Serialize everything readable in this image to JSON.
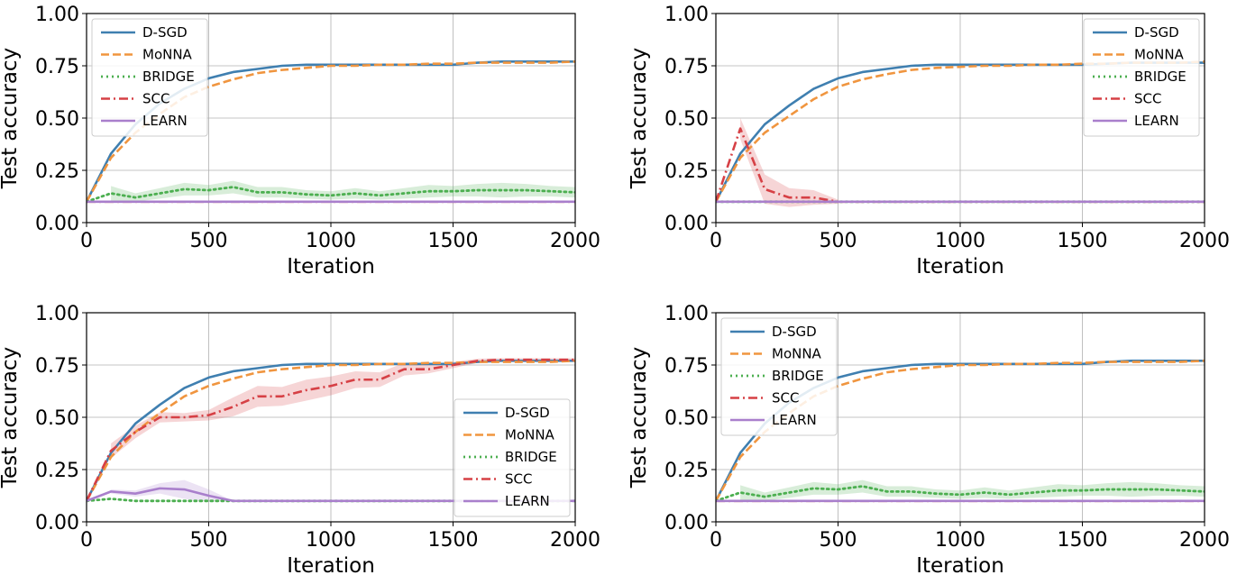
{
  "chart_data": [
    {
      "type": "line",
      "panel": "top-left",
      "xlabel": "Iteration",
      "ylabel": "Test accuracy",
      "xlim": [
        0,
        2000
      ],
      "ylim": [
        0,
        1
      ],
      "xticks": [
        "0",
        "500",
        "1000",
        "1500",
        "2000"
      ],
      "yticks": [
        "0.00",
        "0.25",
        "0.50",
        "0.75",
        "1.00"
      ],
      "grid": true,
      "legend_position": "top-left",
      "x": [
        0,
        100,
        200,
        300,
        400,
        500,
        600,
        700,
        800,
        900,
        1000,
        1100,
        1200,
        1300,
        1400,
        1500,
        1600,
        1700,
        1800,
        1900,
        2000
      ],
      "series": [
        {
          "name": "D-SGD",
          "color": "#3f7fb0",
          "style": "solid",
          "values": [
            0.1,
            0.33,
            0.47,
            0.57,
            0.64,
            0.69,
            0.72,
            0.735,
            0.75,
            0.755,
            0.755,
            0.755,
            0.755,
            0.755,
            0.755,
            0.755,
            0.765,
            0.77,
            0.77,
            0.77,
            0.77
          ]
        },
        {
          "name": "MoNNA",
          "color": "#f0953f",
          "style": "dashed",
          "values": [
            0.1,
            0.31,
            0.43,
            0.52,
            0.6,
            0.65,
            0.685,
            0.715,
            0.73,
            0.74,
            0.75,
            0.75,
            0.755,
            0.755,
            0.76,
            0.76,
            0.765,
            0.765,
            0.765,
            0.765,
            0.77
          ]
        },
        {
          "name": "BRIDGE",
          "color": "#4caf50",
          "style": "dotted",
          "values": [
            0.1,
            0.14,
            0.12,
            0.14,
            0.16,
            0.155,
            0.17,
            0.145,
            0.145,
            0.135,
            0.13,
            0.14,
            0.13,
            0.14,
            0.15,
            0.15,
            0.155,
            0.155,
            0.155,
            0.15,
            0.145
          ],
          "band": [
            0.035,
            0.02,
            0.025,
            0.03,
            0.025,
            0.03,
            0.025,
            0.025,
            0.02,
            0.02,
            0.025,
            0.02,
            0.025,
            0.03,
            0.025,
            0.03,
            0.035,
            0.03,
            0.025,
            0.025
          ],
          "band_start": 100
        },
        {
          "name": "SCC",
          "color": "#d64045",
          "style": "dashdot",
          "values": [
            0.1,
            0.1,
            0.1,
            0.1,
            0.1,
            0.1,
            0.1,
            0.1,
            0.1,
            0.1,
            0.1,
            0.1,
            0.1,
            0.1,
            0.1,
            0.1,
            0.1,
            0.1,
            0.1,
            0.1,
            0.1
          ]
        },
        {
          "name": "LEARN",
          "color": "#a97fcc",
          "style": "solid",
          "values": [
            0.1,
            0.1,
            0.1,
            0.1,
            0.1,
            0.1,
            0.1,
            0.1,
            0.1,
            0.1,
            0.1,
            0.1,
            0.1,
            0.1,
            0.1,
            0.1,
            0.1,
            0.1,
            0.1,
            0.1,
            0.1
          ]
        }
      ]
    },
    {
      "type": "line",
      "panel": "top-right",
      "xlabel": "Iteration",
      "ylabel": "Test accuracy",
      "xlim": [
        0,
        2000
      ],
      "ylim": [
        0,
        1
      ],
      "xticks": [
        "0",
        "500",
        "1000",
        "1500",
        "2000"
      ],
      "yticks": [
        "0.00",
        "0.25",
        "0.50",
        "0.75",
        "1.00"
      ],
      "grid": true,
      "legend_position": "top-right",
      "x": [
        0,
        100,
        200,
        300,
        400,
        500,
        600,
        700,
        800,
        900,
        1000,
        1100,
        1200,
        1300,
        1400,
        1500,
        1600,
        1700,
        1800,
        1900,
        2000
      ],
      "series": [
        {
          "name": "D-SGD",
          "color": "#3f7fb0",
          "style": "solid",
          "values": [
            0.1,
            0.33,
            0.47,
            0.56,
            0.64,
            0.69,
            0.72,
            0.735,
            0.75,
            0.755,
            0.755,
            0.755,
            0.755,
            0.755,
            0.755,
            0.755,
            0.76,
            0.765,
            0.765,
            0.765,
            0.765
          ]
        },
        {
          "name": "MoNNA",
          "color": "#f0953f",
          "style": "dashed",
          "values": [
            0.1,
            0.31,
            0.43,
            0.51,
            0.59,
            0.65,
            0.685,
            0.71,
            0.73,
            0.74,
            0.745,
            0.75,
            0.75,
            0.755,
            0.755,
            0.76,
            0.76,
            0.765,
            0.765,
            0.765,
            0.77
          ]
        },
        {
          "name": "BRIDGE",
          "color": "#4caf50",
          "style": "dotted",
          "values": [
            0.1,
            0.1,
            0.1,
            0.1,
            0.1,
            0.1,
            0.1,
            0.1,
            0.1,
            0.1,
            0.1,
            0.1,
            0.1,
            0.1,
            0.1,
            0.1,
            0.1,
            0.1,
            0.1,
            0.1,
            0.1
          ]
        },
        {
          "name": "SCC",
          "color": "#d64045",
          "style": "dashdot",
          "values": [
            0.1,
            0.45,
            0.16,
            0.12,
            0.12,
            0.1,
            0.1,
            0.1,
            0.1,
            0.1,
            0.1,
            0.1,
            0.1,
            0.1,
            0.1,
            0.1,
            0.1,
            0.1,
            0.1,
            0.1,
            0.1
          ],
          "band": [
            0.05,
            0.07,
            0.045,
            0.035,
            0.01
          ],
          "band_start": 100
        },
        {
          "name": "LEARN",
          "color": "#a97fcc",
          "style": "solid",
          "values": [
            0.1,
            0.1,
            0.1,
            0.1,
            0.1,
            0.1,
            0.1,
            0.1,
            0.1,
            0.1,
            0.1,
            0.1,
            0.1,
            0.1,
            0.1,
            0.1,
            0.1,
            0.1,
            0.1,
            0.1,
            0.1
          ]
        }
      ]
    },
    {
      "type": "line",
      "panel": "bottom-left",
      "xlabel": "Iteration",
      "ylabel": "Test accuracy",
      "xlim": [
        0,
        2000
      ],
      "ylim": [
        0,
        1
      ],
      "xticks": [
        "0",
        "500",
        "1000",
        "1500",
        "2000"
      ],
      "yticks": [
        "0.00",
        "0.25",
        "0.50",
        "0.75",
        "1.00"
      ],
      "grid": true,
      "legend_position": "bottom-right",
      "x": [
        0,
        100,
        200,
        300,
        400,
        500,
        600,
        700,
        800,
        900,
        1000,
        1100,
        1200,
        1300,
        1400,
        1500,
        1600,
        1700,
        1800,
        1900,
        2000
      ],
      "series": [
        {
          "name": "D-SGD",
          "color": "#3f7fb0",
          "style": "solid",
          "values": [
            0.1,
            0.33,
            0.47,
            0.56,
            0.64,
            0.69,
            0.72,
            0.735,
            0.75,
            0.755,
            0.755,
            0.755,
            0.755,
            0.755,
            0.755,
            0.755,
            0.765,
            0.77,
            0.77,
            0.77,
            0.77
          ]
        },
        {
          "name": "MoNNA",
          "color": "#f0953f",
          "style": "dashed",
          "values": [
            0.1,
            0.31,
            0.43,
            0.52,
            0.6,
            0.65,
            0.685,
            0.715,
            0.73,
            0.74,
            0.75,
            0.75,
            0.755,
            0.755,
            0.76,
            0.76,
            0.765,
            0.765,
            0.765,
            0.765,
            0.77
          ]
        },
        {
          "name": "BRIDGE",
          "color": "#4caf50",
          "style": "dotted",
          "values": [
            0.1,
            0.11,
            0.1,
            0.1,
            0.1,
            0.1,
            0.1,
            0.1,
            0.1,
            0.1,
            0.1,
            0.1,
            0.1,
            0.1,
            0.1,
            0.1,
            0.1,
            0.1,
            0.1,
            0.1,
            0.1
          ]
        },
        {
          "name": "SCC",
          "color": "#d64045",
          "style": "dashdot",
          "values": [
            0.1,
            0.34,
            0.43,
            0.5,
            0.5,
            0.51,
            0.55,
            0.6,
            0.6,
            0.63,
            0.65,
            0.68,
            0.68,
            0.73,
            0.73,
            0.75,
            0.77,
            0.775,
            0.775,
            0.775,
            0.775
          ],
          "band": [
            0.035,
            0.03,
            0.025,
            0.02,
            0.025,
            0.045,
            0.05,
            0.045,
            0.05,
            0.045,
            0.04,
            0.035,
            0.03,
            0.02,
            0.015,
            0.01,
            0.008,
            0.008,
            0.008,
            0.008
          ],
          "band_start": 100
        },
        {
          "name": "LEARN",
          "color": "#a97fcc",
          "style": "solid",
          "values": [
            0.1,
            0.145,
            0.135,
            0.16,
            0.155,
            0.125,
            0.1,
            0.1,
            0.1,
            0.1,
            0.1,
            0.1,
            0.1,
            0.1,
            0.1,
            0.1,
            0.1,
            0.1,
            0.1,
            0.1,
            0.1
          ],
          "band": [
            0.01,
            0.015,
            0.025,
            0.045,
            0.03,
            0.0
          ],
          "band_start": 100
        }
      ]
    },
    {
      "type": "line",
      "panel": "bottom-right",
      "xlabel": "Iteration",
      "ylabel": "Test accuracy",
      "xlim": [
        0,
        2000
      ],
      "ylim": [
        0,
        1
      ],
      "xticks": [
        "0",
        "500",
        "1000",
        "1500",
        "2000"
      ],
      "yticks": [
        "0.00",
        "0.25",
        "0.50",
        "0.75",
        "1.00"
      ],
      "grid": true,
      "legend_position": "top-left",
      "x": [
        0,
        100,
        200,
        300,
        400,
        500,
        600,
        700,
        800,
        900,
        1000,
        1100,
        1200,
        1300,
        1400,
        1500,
        1600,
        1700,
        1800,
        1900,
        2000
      ],
      "series": [
        {
          "name": "D-SGD",
          "color": "#3f7fb0",
          "style": "solid",
          "values": [
            0.1,
            0.33,
            0.47,
            0.57,
            0.64,
            0.69,
            0.72,
            0.735,
            0.75,
            0.755,
            0.755,
            0.755,
            0.755,
            0.755,
            0.755,
            0.755,
            0.765,
            0.77,
            0.77,
            0.77,
            0.77
          ]
        },
        {
          "name": "MoNNA",
          "color": "#f0953f",
          "style": "dashed",
          "values": [
            0.1,
            0.31,
            0.43,
            0.52,
            0.6,
            0.65,
            0.685,
            0.715,
            0.73,
            0.74,
            0.75,
            0.75,
            0.755,
            0.755,
            0.76,
            0.76,
            0.765,
            0.765,
            0.765,
            0.765,
            0.77
          ]
        },
        {
          "name": "BRIDGE",
          "color": "#4caf50",
          "style": "dotted",
          "values": [
            0.1,
            0.14,
            0.12,
            0.14,
            0.16,
            0.155,
            0.17,
            0.145,
            0.145,
            0.135,
            0.13,
            0.14,
            0.13,
            0.14,
            0.15,
            0.15,
            0.155,
            0.155,
            0.155,
            0.15,
            0.145
          ],
          "band": [
            0.035,
            0.02,
            0.025,
            0.03,
            0.025,
            0.03,
            0.025,
            0.025,
            0.02,
            0.02,
            0.025,
            0.02,
            0.025,
            0.03,
            0.025,
            0.03,
            0.035,
            0.03,
            0.025,
            0.025
          ],
          "band_start": 100
        },
        {
          "name": "SCC",
          "color": "#d64045",
          "style": "dashdot",
          "values": [
            0.1,
            0.1,
            0.1,
            0.1,
            0.1,
            0.1,
            0.1,
            0.1,
            0.1,
            0.1,
            0.1,
            0.1,
            0.1,
            0.1,
            0.1,
            0.1,
            0.1,
            0.1,
            0.1,
            0.1,
            0.1
          ]
        },
        {
          "name": "LEARN",
          "color": "#a97fcc",
          "style": "solid",
          "values": [
            0.1,
            0.1,
            0.1,
            0.1,
            0.1,
            0.1,
            0.1,
            0.1,
            0.1,
            0.1,
            0.1,
            0.1,
            0.1,
            0.1,
            0.1,
            0.1,
            0.1,
            0.1,
            0.1,
            0.1,
            0.1
          ]
        }
      ]
    }
  ]
}
